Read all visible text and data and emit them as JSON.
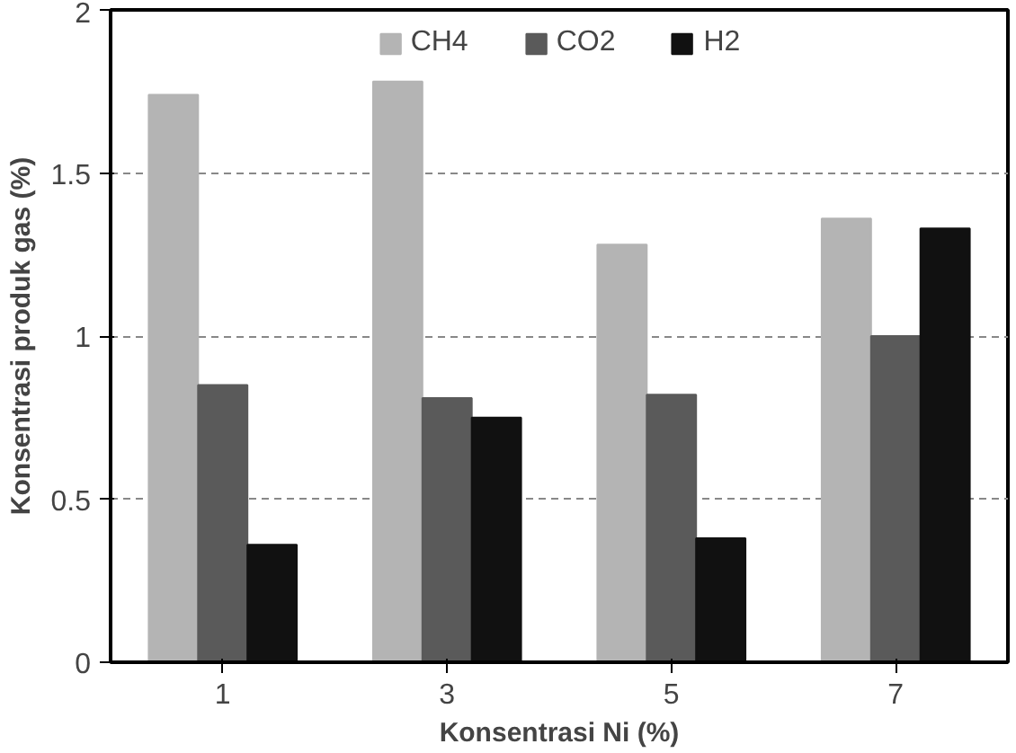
{
  "chart_data": {
    "type": "bar",
    "xlabel": "Konsentrasi Ni (%)",
    "ylabel": "Konsentrasi produk gas (%)",
    "categories": [
      "1",
      "3",
      "5",
      "7"
    ],
    "series": [
      {
        "name": "CH4",
        "color": "#b4b4b4",
        "values": [
          1.74,
          1.78,
          1.28,
          1.36
        ]
      },
      {
        "name": "CO2",
        "color": "#5a5a5a",
        "values": [
          0.85,
          0.81,
          0.82,
          1.0
        ]
      },
      {
        "name": "H2",
        "color": "#111111",
        "values": [
          0.36,
          0.75,
          0.38,
          1.33
        ]
      }
    ],
    "ylim": [
      0,
      2
    ],
    "yticks": [
      0,
      0.5,
      {
        "value": 1,
        "label": "1"
      },
      1.5,
      {
        "value": 2,
        "label": "2"
      }
    ],
    "grid": "y",
    "legend": "top"
  }
}
